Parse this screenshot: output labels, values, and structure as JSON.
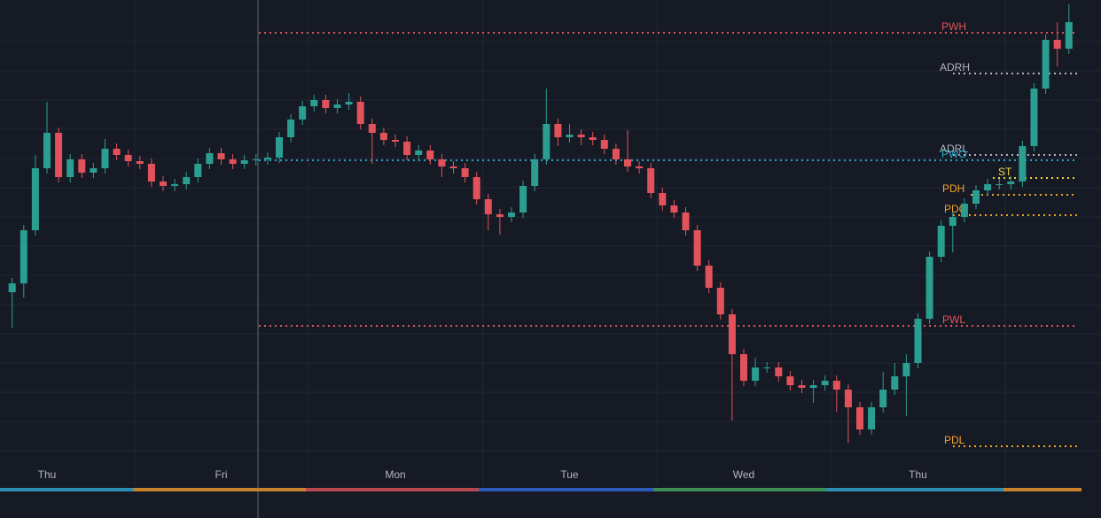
{
  "chart_data": {
    "type": "candlestick",
    "categories": [
      null,
      null,
      null,
      "Thu",
      null,
      null,
      null,
      null,
      null,
      null,
      null,
      null,
      null,
      null,
      null,
      null,
      null,
      null,
      "Fri",
      null,
      null,
      null,
      null,
      null,
      null,
      null,
      null,
      null,
      null,
      null,
      null,
      null,
      null,
      "Mon",
      null,
      null,
      null,
      null,
      null,
      null,
      null,
      null,
      null,
      null,
      null,
      null,
      null,
      null,
      "Tue",
      null,
      null,
      null,
      null,
      null,
      null,
      null,
      null,
      null,
      null,
      null,
      null,
      null,
      null,
      "Wed",
      null,
      null,
      null,
      null,
      null,
      null,
      null,
      null,
      null,
      null,
      null,
      null,
      null,
      null,
      "Thu",
      null,
      null,
      null,
      null,
      null,
      null,
      null,
      null,
      null,
      null,
      null,
      null,
      null
    ],
    "open": [
      255,
      265,
      325,
      395,
      435,
      385,
      405,
      390,
      395,
      417,
      410,
      403,
      400,
      380,
      375,
      377,
      385,
      400,
      412,
      405,
      400,
      404,
      405,
      407,
      430,
      450,
      465,
      472,
      463,
      467,
      470,
      445,
      435,
      427,
      425,
      410,
      415,
      405,
      397,
      395,
      385,
      360,
      343,
      340,
      345,
      375,
      405,
      445,
      430,
      433,
      430,
      427,
      417,
      405,
      397,
      395,
      367,
      353,
      345,
      325,
      285,
      260,
      230,
      185,
      155,
      170,
      170,
      160,
      150,
      147,
      150,
      155,
      145,
      125,
      100,
      125,
      145,
      160,
      175,
      225,
      295,
      330,
      340,
      355,
      370,
      377,
      377,
      380,
      420,
      485,
      540,
      530
    ],
    "high": [
      271,
      331,
      410,
      470,
      441,
      411,
      411,
      401,
      428,
      423,
      416,
      409,
      406,
      386,
      383,
      391,
      406,
      418,
      418,
      411,
      410,
      411,
      413,
      436,
      456,
      471,
      478,
      478,
      473,
      480,
      476,
      451,
      441,
      433,
      431,
      421,
      421,
      411,
      403,
      401,
      391,
      366,
      349,
      351,
      381,
      411,
      485,
      451,
      445,
      439,
      436,
      433,
      423,
      438,
      403,
      401,
      373,
      359,
      351,
      331,
      291,
      266,
      236,
      191,
      181,
      176,
      176,
      166,
      156,
      156,
      161,
      161,
      151,
      131,
      131,
      165,
      175,
      185,
      231,
      301,
      336,
      346,
      361,
      376,
      383,
      383,
      386,
      426,
      491,
      546,
      560,
      580
    ],
    "low": [
      215,
      249,
      319,
      389,
      379,
      379,
      384,
      384,
      389,
      404,
      397,
      394,
      374,
      369,
      369,
      371,
      379,
      394,
      399,
      394,
      394,
      398,
      399,
      401,
      424,
      444,
      459,
      457,
      457,
      461,
      439,
      400,
      421,
      419,
      404,
      404,
      399,
      385,
      389,
      379,
      354,
      325,
      320,
      334,
      339,
      369,
      399,
      420,
      424,
      421,
      421,
      411,
      399,
      391,
      389,
      361,
      347,
      339,
      319,
      279,
      254,
      224,
      110,
      149,
      149,
      164,
      154,
      144,
      141,
      130,
      144,
      120,
      85,
      94,
      94,
      119,
      139,
      115,
      169,
      219,
      289,
      300,
      334,
      349,
      364,
      371,
      371,
      374,
      414,
      479,
      510,
      524
    ],
    "close": [
      265,
      325,
      395,
      435,
      385,
      405,
      390,
      395,
      417,
      410,
      403,
      400,
      380,
      375,
      377,
      385,
      400,
      412,
      405,
      400,
      404,
      405,
      407,
      430,
      450,
      465,
      472,
      463,
      467,
      470,
      445,
      435,
      427,
      425,
      410,
      415,
      405,
      397,
      395,
      385,
      360,
      343,
      340,
      345,
      375,
      405,
      445,
      430,
      433,
      430,
      427,
      417,
      405,
      397,
      395,
      367,
      353,
      345,
      325,
      285,
      260,
      230,
      185,
      155,
      170,
      170,
      160,
      150,
      147,
      150,
      155,
      145,
      125,
      100,
      125,
      145,
      160,
      175,
      225,
      295,
      330,
      340,
      355,
      370,
      377,
      377,
      380,
      420,
      485,
      540,
      530,
      560
    ],
    "up_color": "#2b9e92",
    "down_color": "#e2525b",
    "ylim": [
      0,
      585
    ],
    "levels": [
      {
        "label": "PWH",
        "value": 548,
        "color": "#e2525b"
      },
      {
        "label": "ADRH",
        "value": 502,
        "color": "#b2b5be"
      },
      {
        "label": "ADRL",
        "value": 410,
        "color": "#b2b5be"
      },
      {
        "label": "PWO",
        "value": 404,
        "color": "#22a6c4"
      },
      {
        "label": "ST",
        "value": 384,
        "color": "#f3d43a"
      },
      {
        "label": "PDH",
        "value": 365,
        "color": "#f0a02a"
      },
      {
        "label": "PDC",
        "value": 342,
        "color": "#f0a02a"
      },
      {
        "label": "PWL",
        "value": 217,
        "color": "#e2525b"
      },
      {
        "label": "PDL",
        "value": 81,
        "color": "#f0a02a"
      }
    ]
  }
}
